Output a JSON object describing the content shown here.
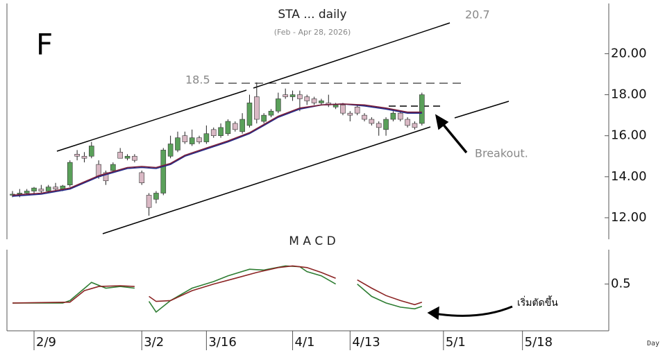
{
  "chart_data": [
    {
      "type": "candlestick",
      "title": "STA ... daily",
      "subtitle": "(Feb - Apr 28, 2026)",
      "label": "F",
      "annotations": [
        "18.5",
        "20.7",
        "Breakout."
      ],
      "up_color": "#5aa05a",
      "down_color": "#d9b8c4",
      "xlim": [
        -1.7,
        83.5
      ],
      "ylim": [
        10.95,
        22.45
      ],
      "yticks": [
        {
          "value": 12,
          "label": "12.00"
        },
        {
          "value": 14,
          "label": "14.00"
        },
        {
          "value": 16,
          "label": "16.00"
        },
        {
          "value": 18,
          "label": "18.00"
        },
        {
          "value": 20,
          "label": "20.00"
        }
      ],
      "x": [
        0,
        1,
        2,
        3,
        4,
        5,
        6,
        7,
        8,
        9,
        10,
        11,
        12,
        13,
        14,
        15,
        16,
        17,
        18,
        19,
        20,
        21,
        22,
        23,
        24,
        25,
        26,
        27,
        28,
        29,
        30,
        31,
        32,
        33,
        34,
        35,
        36,
        37,
        38,
        39,
        40,
        41,
        42,
        43,
        44,
        45,
        46,
        47,
        48,
        49,
        50,
        51,
        52,
        53,
        54,
        55,
        56,
        57
      ],
      "open": [
        13.1,
        13.15,
        13.2,
        13.3,
        13.4,
        13.3,
        13.5,
        13.4,
        13.6,
        15.1,
        15.0,
        15.0,
        14.6,
        14.2,
        14.3,
        15.2,
        14.9,
        15.0,
        14.2,
        13.1,
        12.9,
        13.2,
        15.0,
        15.3,
        16.0,
        15.6,
        15.9,
        15.7,
        16.3,
        16.0,
        16.1,
        16.6,
        16.2,
        16.5,
        17.9,
        16.7,
        17.0,
        17.2,
        18.0,
        17.9,
        18.0,
        17.9,
        17.8,
        17.6,
        17.6,
        17.4,
        17.5,
        17.1,
        17.4,
        17.0,
        16.8,
        16.6,
        16.3,
        16.8,
        17.1,
        16.8,
        16.6,
        16.6
      ],
      "high": [
        13.3,
        13.4,
        13.4,
        13.5,
        13.6,
        13.6,
        13.7,
        13.6,
        14.8,
        15.3,
        15.2,
        15.7,
        14.8,
        14.3,
        14.7,
        15.4,
        15.1,
        15.1,
        14.3,
        13.2,
        13.3,
        15.4,
        16.0,
        16.2,
        16.2,
        16.3,
        16.0,
        16.5,
        16.4,
        16.6,
        16.8,
        16.7,
        17.1,
        18.0,
        18.6,
        17.1,
        17.3,
        18.1,
        18.3,
        18.2,
        18.2,
        18.0,
        17.9,
        17.8,
        18.0,
        17.6,
        17.6,
        17.2,
        17.5,
        17.1,
        16.9,
        16.7,
        16.9,
        17.2,
        17.2,
        16.9,
        16.7,
        18.1
      ],
      "low": [
        13.0,
        13.0,
        13.1,
        13.2,
        13.2,
        13.2,
        13.3,
        13.3,
        13.5,
        14.8,
        14.7,
        14.9,
        13.9,
        13.6,
        14.2,
        14.9,
        14.8,
        14.7,
        13.6,
        12.1,
        12.7,
        13.1,
        14.9,
        15.2,
        15.6,
        15.5,
        15.6,
        15.6,
        15.9,
        15.9,
        16.0,
        16.2,
        16.1,
        16.4,
        16.6,
        16.6,
        16.9,
        17.1,
        17.8,
        17.7,
        17.2,
        17.5,
        17.5,
        17.5,
        17.4,
        17.3,
        17.0,
        16.7,
        17.0,
        16.7,
        16.5,
        16.0,
        16.0,
        16.7,
        16.7,
        16.4,
        16.3,
        16.5
      ],
      "close": [
        13.15,
        13.2,
        13.3,
        13.45,
        13.3,
        13.5,
        13.4,
        13.55,
        14.7,
        15.0,
        14.9,
        15.5,
        14.0,
        13.8,
        14.6,
        14.9,
        15.0,
        14.8,
        13.7,
        12.5,
        13.2,
        15.3,
        15.6,
        15.9,
        15.7,
        15.9,
        15.7,
        16.1,
        16.0,
        16.4,
        16.7,
        16.3,
        16.8,
        17.6,
        16.8,
        17.0,
        17.2,
        17.8,
        17.9,
        18.0,
        17.8,
        17.7,
        17.6,
        17.7,
        17.5,
        17.5,
        17.1,
        17.0,
        17.1,
        16.8,
        16.6,
        16.4,
        16.8,
        17.1,
        16.8,
        16.5,
        16.4,
        18.0
      ],
      "series": [
        {
          "color": "#1f2a8a",
          "x": [
            0,
            4,
            8,
            12,
            16,
            18,
            20,
            22,
            24,
            27,
            30,
            33,
            35,
            37,
            40,
            43,
            46,
            49,
            52,
            55,
            57
          ],
          "values": [
            13.05,
            13.15,
            13.4,
            14.0,
            14.4,
            14.45,
            14.4,
            14.6,
            15.0,
            15.35,
            15.7,
            16.1,
            16.5,
            16.9,
            17.3,
            17.5,
            17.55,
            17.45,
            17.3,
            17.1,
            17.1
          ]
        },
        {
          "color": "#7a1f3a",
          "x": [
            0,
            4,
            8,
            12,
            16,
            18,
            20,
            22,
            24,
            27,
            30,
            33,
            35,
            37,
            40,
            43,
            46,
            49,
            52,
            55,
            57
          ],
          "values": [
            13.1,
            13.2,
            13.45,
            14.05,
            14.45,
            14.5,
            14.45,
            14.65,
            15.05,
            15.4,
            15.75,
            16.15,
            16.55,
            16.95,
            17.35,
            17.5,
            17.55,
            17.5,
            17.35,
            17.15,
            17.15
          ]
        }
      ]
    },
    {
      "type": "line",
      "title": "M A C D",
      "xlabel": "Day",
      "annotations": [
        "เริ่มตัดขึ้น"
      ],
      "xlim": [
        -1.7,
        83.5
      ],
      "ylim": [
        -0.05,
        0.9
      ],
      "yticks": [
        0.5
      ],
      "xticks": [
        {
          "value": 3,
          "label": "2/9"
        },
        {
          "value": 18,
          "label": "3/2"
        },
        {
          "value": 27,
          "label": "3/16"
        },
        {
          "value": 39,
          "label": "4/1"
        },
        {
          "value": 47,
          "label": "4/13"
        },
        {
          "value": 60,
          "label": "5/1"
        },
        {
          "value": 71,
          "label": "5/18"
        }
      ],
      "series": [
        {
          "color": "#2e7d32",
          "x": [
            0,
            7,
            8,
            11,
            13,
            15,
            17,
            18,
            19,
            20,
            22,
            25,
            28,
            30,
            33,
            35,
            38,
            40,
            41,
            43,
            45,
            46,
            48,
            50,
            52,
            54,
            56,
            57
          ],
          "values": [
            0.27,
            0.27,
            0.3,
            0.52,
            0.45,
            0.47,
            0.45,
            null,
            0.29,
            0.16,
            0.3,
            0.45,
            0.53,
            0.6,
            0.68,
            0.67,
            0.72,
            0.71,
            0.65,
            0.6,
            0.5,
            null,
            0.5,
            0.35,
            0.27,
            0.22,
            0.2,
            0.23
          ]
        },
        {
          "color": "#8b2323",
          "x": [
            0,
            8,
            10,
            12,
            15,
            17,
            18,
            19,
            20,
            22,
            25,
            28,
            31,
            34,
            37,
            39,
            41,
            43,
            45,
            46,
            48,
            50,
            52,
            54,
            56,
            57
          ],
          "values": [
            0.27,
            0.28,
            0.42,
            0.47,
            0.48,
            0.47,
            null,
            0.35,
            0.29,
            0.3,
            0.42,
            0.5,
            0.57,
            0.64,
            0.7,
            0.72,
            0.7,
            0.64,
            0.57,
            null,
            0.55,
            0.45,
            0.36,
            0.3,
            0.25,
            0.28
          ]
        }
      ]
    }
  ]
}
